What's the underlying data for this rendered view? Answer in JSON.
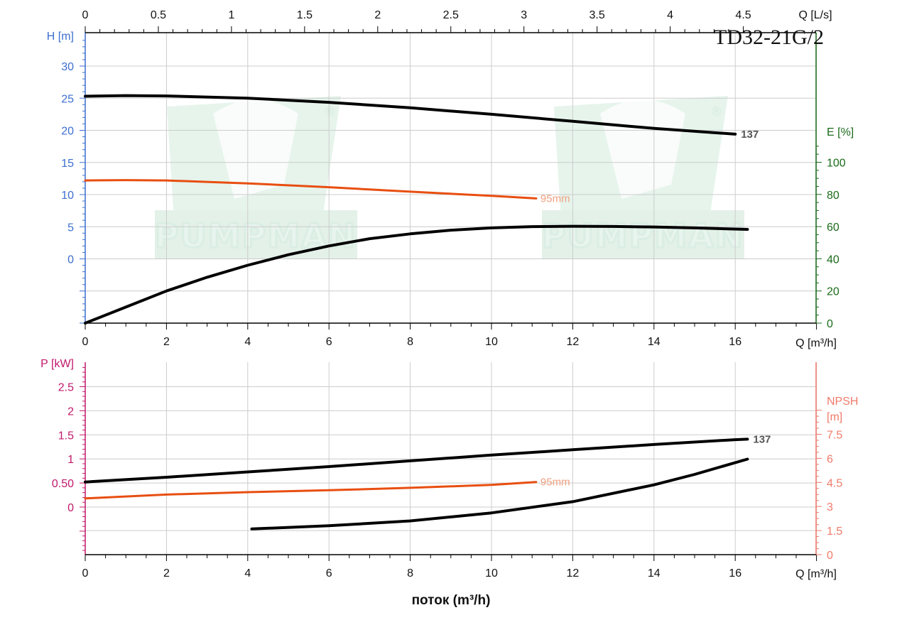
{
  "title": "TD32-21G/2",
  "watermark": "PUMPMAN",
  "watermark_mark": "®",
  "xlabel_bottom": "поток (m³/h)",
  "colors": {
    "head": "#3d6fcf",
    "efficiency": "#1a6b1a",
    "power": "#c2186b",
    "npsh": "#f07a6a",
    "curve": "#000000",
    "curve_small": "#e84e10",
    "grid": "#cccccc",
    "label_small": "#f0a080"
  },
  "chart_data": [
    {
      "type": "line",
      "panel": "top",
      "x_axis": {
        "label": "Q [m³/h]",
        "range": [
          0,
          18
        ],
        "ticks": [
          0,
          2,
          4,
          6,
          8,
          10,
          12,
          14,
          16
        ]
      },
      "x2_axis": {
        "label": "Q [L/s]",
        "ticks": [
          0,
          0.5,
          1,
          1.5,
          2,
          2.5,
          3,
          3.5,
          4,
          4.5
        ]
      },
      "y_axis": {
        "label": "H [m]",
        "ticks": [
          0,
          5,
          10,
          15,
          20,
          25,
          30
        ]
      },
      "y2_axis": {
        "label": "E [%]",
        "ticks": [
          0,
          20,
          40,
          60,
          80,
          100
        ]
      },
      "grid": true,
      "series": [
        {
          "name": "137",
          "axis": "H",
          "color": "#000000",
          "points": [
            [
              0,
              25.3
            ],
            [
              1,
              25.4
            ],
            [
              2,
              25.35
            ],
            [
              4,
              25.0
            ],
            [
              6,
              24.35
            ],
            [
              8,
              23.5
            ],
            [
              10,
              22.5
            ],
            [
              12,
              21.4
            ],
            [
              14,
              20.3
            ],
            [
              16,
              19.4
            ]
          ]
        },
        {
          "name": "95mm",
          "axis": "H",
          "color": "#e84e10",
          "points": [
            [
              0,
              12.2
            ],
            [
              1,
              12.25
            ],
            [
              2,
              12.2
            ],
            [
              4,
              11.75
            ],
            [
              6,
              11.15
            ],
            [
              8,
              10.45
            ],
            [
              10,
              9.8
            ],
            [
              11.1,
              9.4
            ]
          ]
        },
        {
          "name": "",
          "axis": "E",
          "color": "#000000",
          "points": [
            [
              0,
              0
            ],
            [
              1,
              10
            ],
            [
              2,
              20
            ],
            [
              3,
              28.5
            ],
            [
              4,
              36
            ],
            [
              5,
              42.5
            ],
            [
              6,
              48
            ],
            [
              7,
              52.5
            ],
            [
              8,
              55.5
            ],
            [
              9,
              57.8
            ],
            [
              10,
              59.2
            ],
            [
              11,
              60
            ],
            [
              12,
              60.2
            ],
            [
              13,
              60.1
            ],
            [
              14,
              59.8
            ],
            [
              15,
              59.2
            ],
            [
              16.3,
              58.3
            ]
          ]
        }
      ]
    },
    {
      "type": "line",
      "panel": "bottom",
      "x_axis": {
        "label": "Q [m³/h]",
        "range": [
          0,
          18
        ],
        "ticks": [
          0,
          2,
          4,
          6,
          8,
          10,
          12,
          14,
          16
        ]
      },
      "y_axis": {
        "label": "P [kW]",
        "ticks": [
          0,
          0.5,
          1,
          1.5,
          2,
          2.5
        ],
        "tick_labels": [
          "0",
          "0.50",
          "1",
          "1.5",
          "2",
          "2.5"
        ]
      },
      "y2_axis": {
        "label_lines": [
          "NPSH",
          "[m]"
        ],
        "ticks": [
          0,
          1.5,
          3,
          4.5,
          6,
          7.5
        ]
      },
      "grid": true,
      "series": [
        {
          "name": "137",
          "axis": "P",
          "color": "#000000",
          "points": [
            [
              0,
              0.52
            ],
            [
              2,
              0.62
            ],
            [
              4,
              0.73
            ],
            [
              6,
              0.84
            ],
            [
              8,
              0.96
            ],
            [
              10,
              1.08
            ],
            [
              12,
              1.19
            ],
            [
              14,
              1.3
            ],
            [
              16,
              1.4
            ],
            [
              16.3,
              1.41
            ]
          ]
        },
        {
          "name": "95mm",
          "axis": "P",
          "color": "#e84e10",
          "points": [
            [
              0,
              0.18
            ],
            [
              2,
              0.26
            ],
            [
              4,
              0.31
            ],
            [
              6,
              0.35
            ],
            [
              8,
              0.4
            ],
            [
              10,
              0.46
            ],
            [
              11.1,
              0.52
            ]
          ]
        },
        {
          "name": "",
          "axis": "NPSH",
          "color": "#000000",
          "points": [
            [
              4.1,
              1.6
            ],
            [
              6,
              1.8
            ],
            [
              8,
              2.1
            ],
            [
              10,
              2.6
            ],
            [
              12,
              3.3
            ],
            [
              14,
              4.35
            ],
            [
              15,
              5.0
            ],
            [
              16.3,
              5.95
            ]
          ]
        }
      ]
    }
  ]
}
